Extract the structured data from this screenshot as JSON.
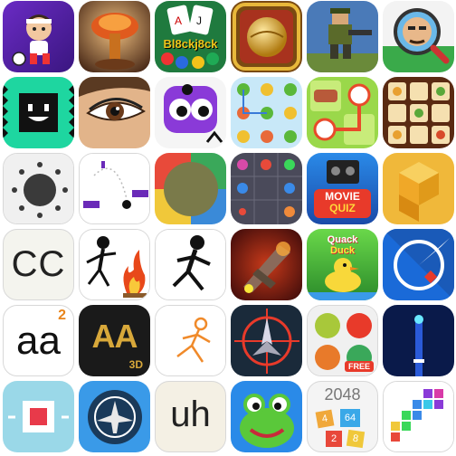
{
  "tiles": {
    "blackjack": {
      "title": "Bl8ckj8ck"
    },
    "movie_quiz": {
      "line1": "MOVIE",
      "line2": "QUIZ"
    },
    "cc": {
      "label": "CC"
    },
    "quack": {
      "line1": "Quack",
      "line2": "Duck"
    },
    "aa_letters": {
      "label": "aa",
      "badge": "2"
    },
    "aa3d": {
      "label": "AA",
      "sub": "3D"
    },
    "free_balls": {
      "badge": "FREE"
    },
    "uh": {
      "label": "uh"
    },
    "game2048": {
      "title": "2048",
      "n1": "4",
      "n2": "64",
      "n3": "2",
      "n4": "8"
    }
  }
}
